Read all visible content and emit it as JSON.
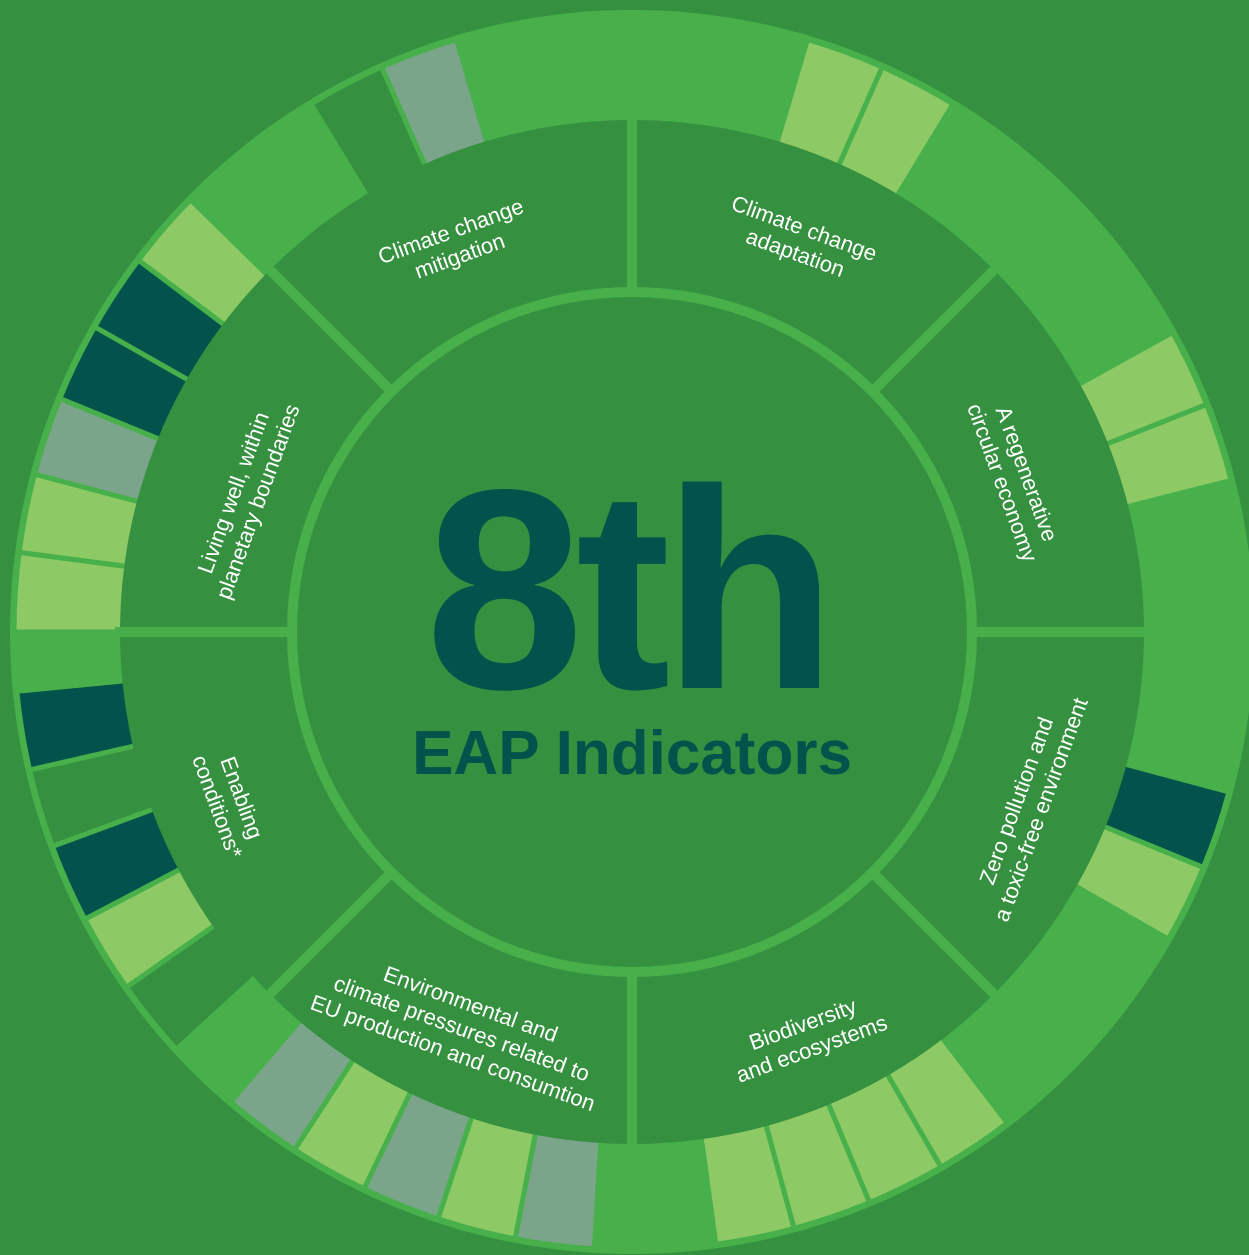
{
  "title": "8th",
  "subtitle": "EAP Indicators",
  "sectors": [
    {
      "lines": [
        "Climate change",
        "mitigation"
      ]
    },
    {
      "lines": [
        "Climate change",
        "adaptation"
      ]
    },
    {
      "lines": [
        "A regenerative",
        "circular economy"
      ]
    },
    {
      "lines": [
        "Zero pollution and",
        "a toxic-free environment"
      ]
    },
    {
      "lines": [
        "Biodiversity",
        "and ecosystems"
      ]
    },
    {
      "lines": [
        "Environmental and",
        "climate pressures related to",
        "EU production and consumtion"
      ]
    },
    {
      "lines": [
        "Enabling",
        "conditions*"
      ]
    },
    {
      "lines": [
        "Living well, within",
        "planetary boundaries"
      ]
    }
  ]
}
